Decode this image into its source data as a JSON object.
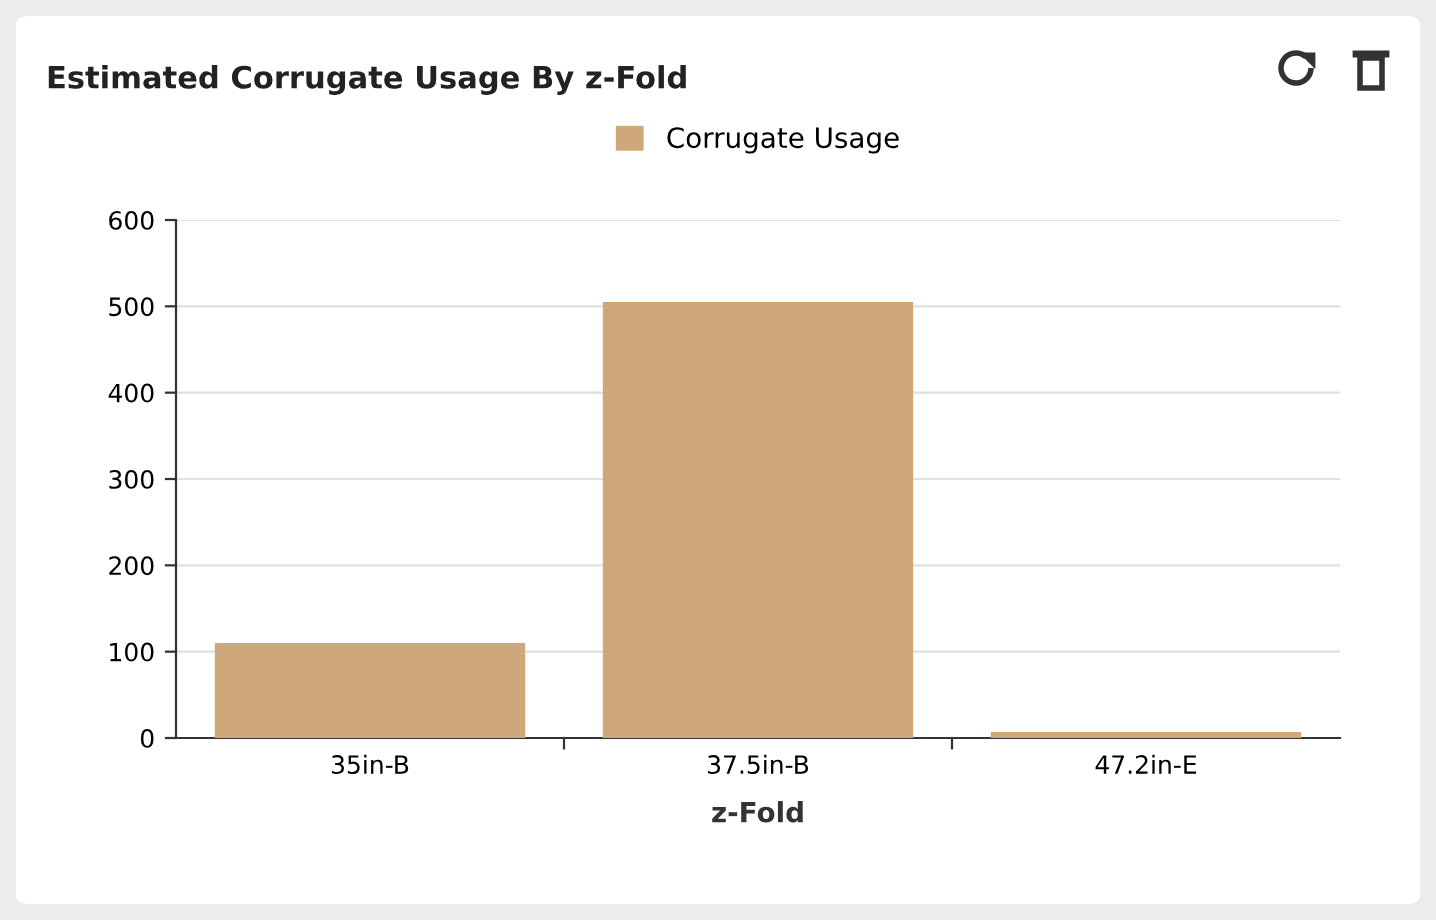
{
  "chart_data": {
    "type": "bar",
    "title": "Estimated Corrugate Usage By z-Fold",
    "xlabel": "z-Fold",
    "categories": [
      "35in-B",
      "37.5in-B",
      "47.2in-E"
    ],
    "series": [
      {
        "name": "Corrugate Usage",
        "color": "#cfa87a",
        "values": [
          110,
          505,
          7
        ]
      }
    ],
    "ylim": [
      0,
      600
    ],
    "yticks": [
      0,
      100,
      200,
      300,
      400,
      500,
      600
    ],
    "grid": "y",
    "legend": "top"
  }
}
